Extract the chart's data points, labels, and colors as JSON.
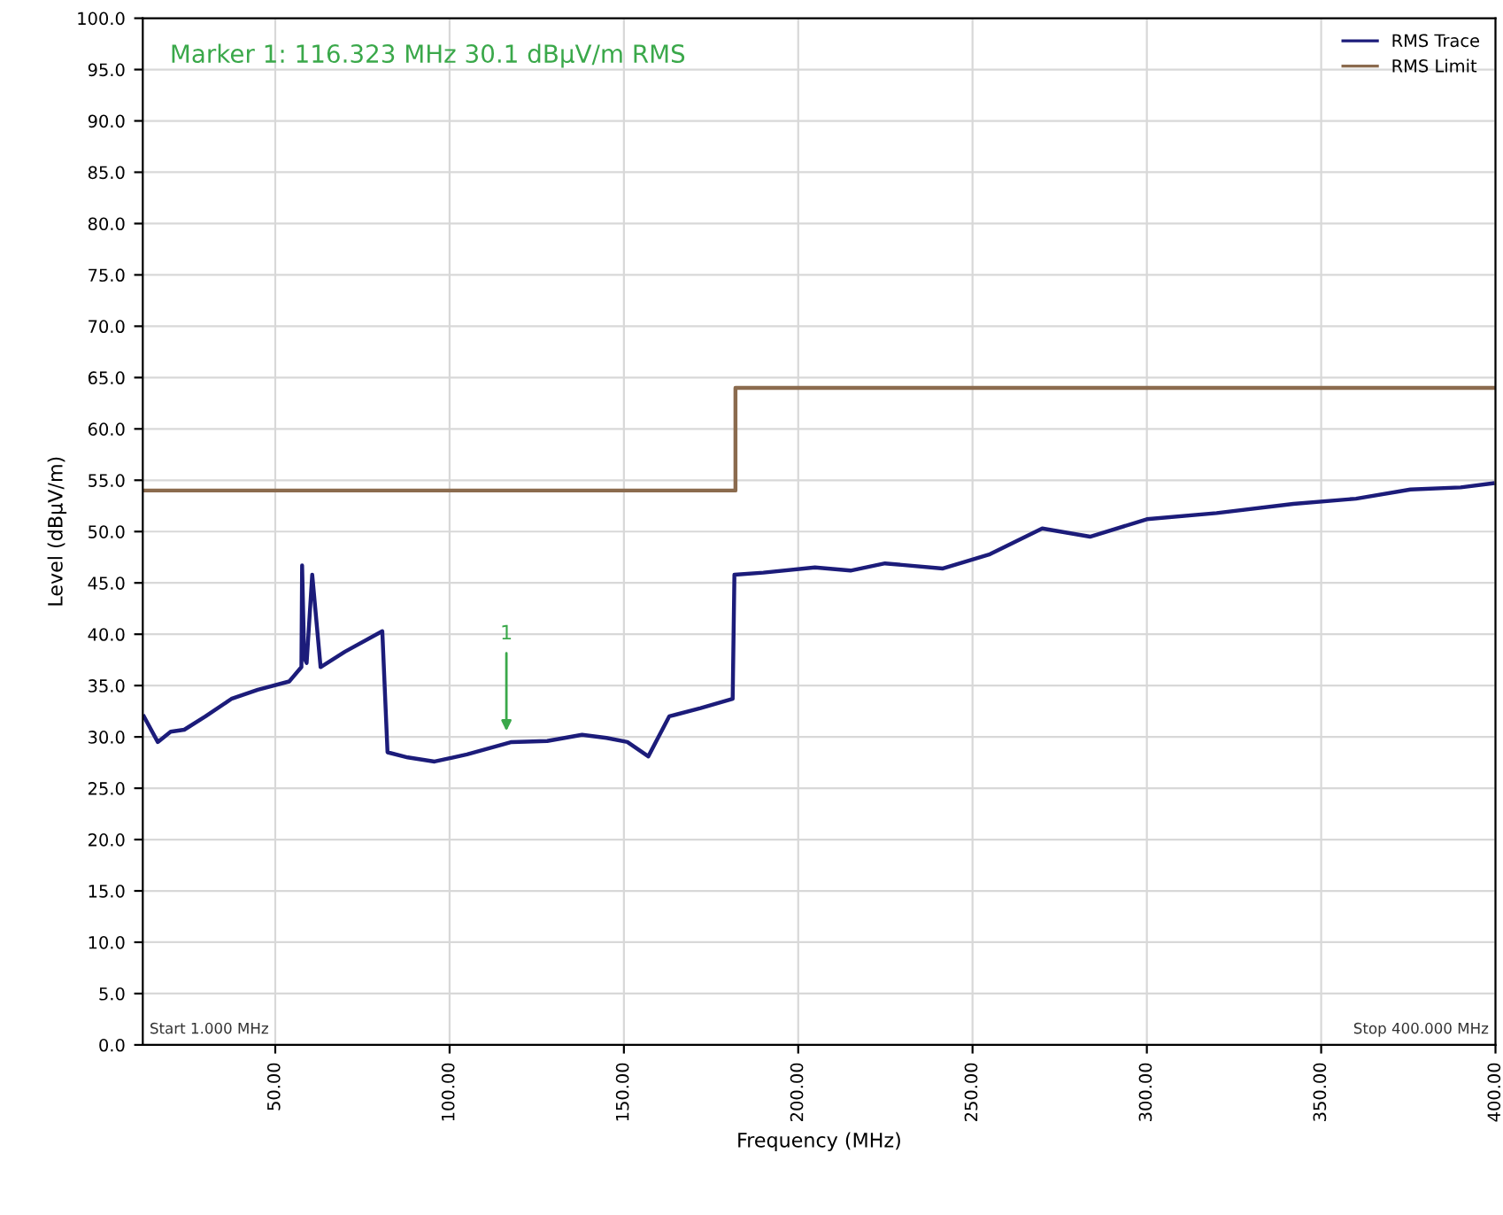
{
  "chart_data": {
    "type": "line",
    "xlabel": "Frequency (MHz)",
    "ylabel": "Level (dBμV/m)",
    "series": [
      {
        "name": "RMS Trace",
        "color": "#1c1c7a",
        "x": [
          12.3,
          16.3,
          20,
          23.9,
          30,
          37.4,
          45,
          54,
          57.5,
          57.7,
          58.3,
          59,
          60.6,
          63,
          70,
          80.7,
          82.2,
          88,
          95.7,
          105,
          117.8,
          128,
          138,
          145,
          151,
          157,
          163,
          172,
          181.2,
          181.7,
          190,
          204.8,
          215,
          224.9,
          241.5,
          255,
          270,
          283.7,
          300,
          320,
          342,
          360,
          375.6,
          390,
          399.2
        ],
        "values": [
          32,
          29.5,
          30.5,
          30.7,
          32,
          33.7,
          34.6,
          35.4,
          36.8,
          46.7,
          37.7,
          37.2,
          45.8,
          36.8,
          38.3,
          40.3,
          28.5,
          28,
          27.6,
          28.3,
          29.5,
          29.6,
          30.2,
          29.9,
          29.5,
          28.1,
          32,
          32.8,
          33.7,
          45.8,
          46,
          46.5,
          46.2,
          46.9,
          46.4,
          47.8,
          50.3,
          49.5,
          51.2,
          51.8,
          52.7,
          53.2,
          54.1,
          54.3,
          54.7
        ]
      },
      {
        "name": "RMS Limit",
        "color": "#8b6b4e",
        "type": "step",
        "x": [
          12,
          182,
          400
        ],
        "values": [
          54,
          64,
          64
        ]
      }
    ],
    "xlim": [
      12,
      400
    ],
    "xticks": [
      {
        "value": 50,
        "label": "50.00"
      },
      {
        "value": 100,
        "label": "100.00"
      },
      {
        "value": 150,
        "label": "150.00"
      },
      {
        "value": 200,
        "label": "200.00"
      },
      {
        "value": 250,
        "label": "250.00"
      },
      {
        "value": 300,
        "label": "300.00"
      },
      {
        "value": 350,
        "label": "350.00"
      },
      {
        "value": 400,
        "label": "400.00"
      }
    ],
    "ylim": [
      0,
      100
    ],
    "yticks": [
      {
        "value": 0,
        "label": "0.0"
      },
      {
        "value": 5,
        "label": "5.0"
      },
      {
        "value": 10,
        "label": "10.0"
      },
      {
        "value": 15,
        "label": "15.0"
      },
      {
        "value": 20,
        "label": "20.0"
      },
      {
        "value": 25,
        "label": "25.0"
      },
      {
        "value": 30,
        "label": "30.0"
      },
      {
        "value": 35,
        "label": "35.0"
      },
      {
        "value": 40,
        "label": "40.0"
      },
      {
        "value": 45,
        "label": "45.0"
      },
      {
        "value": 50,
        "label": "50.0"
      },
      {
        "value": 55,
        "label": "55.0"
      },
      {
        "value": 60,
        "label": "60.0"
      },
      {
        "value": 65,
        "label": "65.0"
      },
      {
        "value": 70,
        "label": "70.0"
      },
      {
        "value": 75,
        "label": "75.0"
      },
      {
        "value": 80,
        "label": "80.0"
      },
      {
        "value": 85,
        "label": "85.0"
      },
      {
        "value": 90,
        "label": "90.0"
      },
      {
        "value": 95,
        "label": "95.0"
      },
      {
        "value": 100,
        "label": "100.0"
      }
    ],
    "annotations": [
      "Marker 1: 116.323 MHz 30.1 dBμV/m RMS",
      "Start 1.000 MHz",
      "Stop 400.000 MHz",
      {
        "text": "1",
        "x": 116.3,
        "y": 30.1
      }
    ],
    "grid": true,
    "legend": "top right",
    "marker": "none",
    "line_style": "solid"
  }
}
